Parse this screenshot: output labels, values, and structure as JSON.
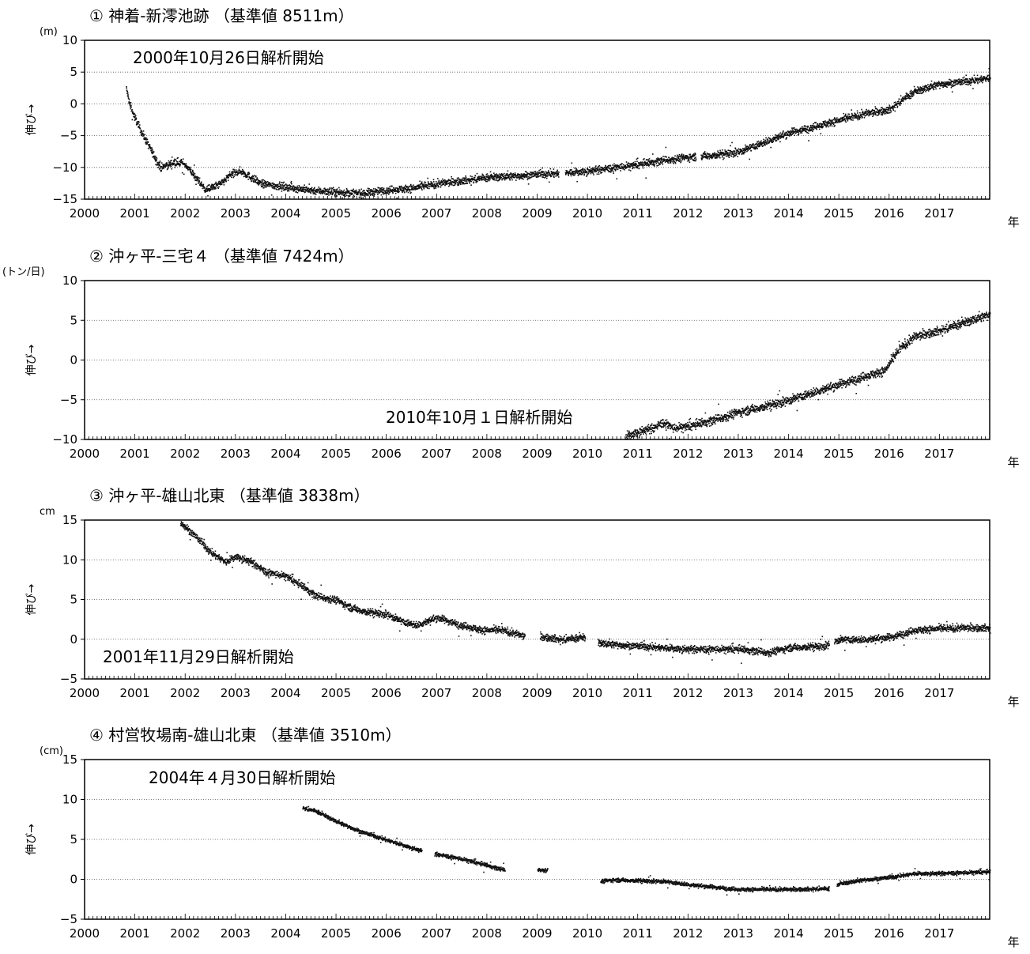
{
  "chart_data": [
    {
      "type": "scatter",
      "title": "① 神着-新澪池跡 （基準値 8511m）",
      "unit": "(m)",
      "ylabel": "伸び→",
      "annotation": "2000年10月26日解析開始",
      "xlabel": "年",
      "xlim": [
        2000.0,
        2018.0
      ],
      "ylim": [
        -15,
        10
      ],
      "yticks": [
        "10",
        "5",
        "0",
        "−5",
        "−10",
        "−15"
      ],
      "ytick_values": [
        10,
        5,
        0,
        -5,
        -10,
        -15
      ],
      "xticks": [
        "2000",
        "2001",
        "2002",
        "2003",
        "2004",
        "2005",
        "2006",
        "2007",
        "2008",
        "2009",
        "2010",
        "2011",
        "2012",
        "2013",
        "2014",
        "2015",
        "2016",
        "2017"
      ],
      "grid": true,
      "start": 2000.82,
      "gaps": [
        [
          2009.42,
          2009.55
        ],
        [
          2012.15,
          2012.25
        ]
      ],
      "noise": 0.6,
      "series": [
        {
          "x": [
            2000.82,
            2000.9,
            2001.1,
            2001.3,
            2001.5,
            2001.8,
            2002.0,
            2002.2,
            2002.4,
            2002.7,
            2002.9,
            2003.1,
            2003.5,
            2004.0,
            2004.5,
            2005.0,
            2005.5,
            2006.0,
            2006.5,
            2007.0,
            2007.5,
            2008.0,
            2008.5,
            2009.0,
            2009.5,
            2010.0,
            2010.5,
            2011.0,
            2011.5,
            2012.0,
            2012.5,
            2013.0,
            2013.5,
            2014.0,
            2014.5,
            2015.0,
            2015.5,
            2016.0,
            2016.3,
            2016.5,
            2017.0,
            2017.5,
            2018.0
          ],
          "y": [
            2.5,
            -0.5,
            -4,
            -7,
            -10,
            -9,
            -9.5,
            -11.5,
            -13.5,
            -12.5,
            -11,
            -10.5,
            -12.5,
            -13,
            -13.5,
            -13.8,
            -14,
            -13.5,
            -13.2,
            -12.5,
            -12,
            -11.5,
            -11.3,
            -11,
            -10.8,
            -10.5,
            -10,
            -9.5,
            -8.8,
            -8.3,
            -8,
            -7.5,
            -6,
            -4.5,
            -3.5,
            -2.5,
            -1.5,
            -0.8,
            1,
            2,
            3.2,
            3.6,
            4.2
          ]
        }
      ]
    },
    {
      "type": "scatter",
      "title": "② 沖ヶ平-三宅４ （基準値 7424m）",
      "unit": "(トン/日)",
      "ylabel": "伸び→",
      "annotation": "2010年10月１日解析開始",
      "xlabel": "年",
      "xlim": [
        2000.0,
        2018.0
      ],
      "ylim": [
        -10,
        10
      ],
      "yticks": [
        "10",
        "5",
        "0",
        "−5",
        "−10"
      ],
      "ytick_values": [
        10,
        5,
        0,
        -5,
        -10
      ],
      "xticks": [
        "2000",
        "2001",
        "2002",
        "2003",
        "2004",
        "2005",
        "2006",
        "2007",
        "2008",
        "2009",
        "2010",
        "2011",
        "2012",
        "2013",
        "2014",
        "2015",
        "2016",
        "2017"
      ],
      "grid": true,
      "start": 2010.75,
      "gaps": [],
      "noise": 0.55,
      "series": [
        {
          "x": [
            2010.75,
            2011.0,
            2011.3,
            2011.5,
            2011.7,
            2012.0,
            2012.5,
            2013.0,
            2013.5,
            2014.0,
            2014.5,
            2015.0,
            2015.5,
            2015.9,
            2016.2,
            2016.5,
            2017.0,
            2017.5,
            2018.0
          ],
          "y": [
            -9.5,
            -9,
            -8.5,
            -7.8,
            -8.5,
            -8.3,
            -7.5,
            -6.5,
            -5.8,
            -5,
            -4,
            -3,
            -2,
            -1.3,
            1.5,
            3,
            3.8,
            4.8,
            5.8
          ]
        }
      ]
    },
    {
      "type": "scatter",
      "title": "③ 沖ヶ平-雄山北東 （基準値 3838m）",
      "unit": "cm",
      "ylabel": "伸び→",
      "annotation": "2001年11月29日解析開始",
      "xlabel": "年",
      "xlim": [
        2000.0,
        2018.0
      ],
      "ylim": [
        -5,
        15
      ],
      "yticks": [
        "15",
        "10",
        "5",
        "0",
        "−5"
      ],
      "ytick_values": [
        15,
        10,
        5,
        0,
        -5
      ],
      "xticks": [
        "2000",
        "2001",
        "2002",
        "2003",
        "2004",
        "2005",
        "2006",
        "2007",
        "2008",
        "2009",
        "2010",
        "2011",
        "2012",
        "2013",
        "2014",
        "2015",
        "2016",
        "2017"
      ],
      "grid": true,
      "start": 2001.9,
      "gaps": [
        [
          2008.75,
          2009.05
        ],
        [
          2009.95,
          2010.2
        ],
        [
          2014.8,
          2014.9
        ]
      ],
      "noise": 0.45,
      "series": [
        {
          "x": [
            2001.9,
            2002.2,
            2002.5,
            2002.8,
            2003.0,
            2003.3,
            2003.6,
            2004.0,
            2004.3,
            2004.6,
            2005.0,
            2005.3,
            2005.6,
            2006.0,
            2006.3,
            2006.6,
            2007.0,
            2007.5,
            2007.9,
            2008.3,
            2008.7,
            2009.2,
            2009.5,
            2009.9,
            2010.3,
            2011.0,
            2012.0,
            2013.0,
            2013.6,
            2014.0,
            2014.7,
            2015.0,
            2015.5,
            2016.0,
            2016.5,
            2017.0,
            2017.5,
            2018.0
          ],
          "y": [
            14.8,
            13,
            11,
            9.8,
            10.5,
            9.8,
            8.5,
            8,
            6.8,
            5.5,
            5,
            4,
            3.5,
            3.2,
            2.3,
            1.8,
            2.8,
            1.8,
            1.2,
            1.2,
            0.5,
            0.3,
            0,
            0.3,
            -0.5,
            -0.8,
            -1.2,
            -1.2,
            -1.6,
            -1,
            -0.8,
            0,
            0,
            0.3,
            1.2,
            1.4,
            1.5,
            1.5
          ]
        }
      ]
    },
    {
      "type": "scatter",
      "title": "④ 村営牧場南-雄山北東 （基準値 3510m）",
      "unit": "(cm)",
      "ylabel": "伸び→",
      "annotation": "2004年４月30日解析開始",
      "xlabel": "年",
      "xlim": [
        2000.0,
        2018.0
      ],
      "ylim": [
        -5,
        15
      ],
      "yticks": [
        "15",
        "10",
        "5",
        "0",
        "−5"
      ],
      "ytick_values": [
        15,
        10,
        5,
        0,
        -5
      ],
      "xticks": [
        "2000",
        "2001",
        "2002",
        "2003",
        "2004",
        "2005",
        "2006",
        "2007",
        "2008",
        "2009",
        "2010",
        "2011",
        "2012",
        "2013",
        "2014",
        "2015",
        "2016",
        "2017"
      ],
      "grid": true,
      "start": 2004.33,
      "gaps": [
        [
          2006.7,
          2006.95
        ],
        [
          2008.35,
          2009.0
        ],
        [
          2009.2,
          2010.25
        ],
        [
          2014.8,
          2014.95
        ]
      ],
      "noise": 0.25,
      "series": [
        {
          "x": [
            2004.33,
            2004.6,
            2005.0,
            2005.5,
            2006.0,
            2006.5,
            2006.7,
            2007.0,
            2007.5,
            2008.0,
            2008.35,
            2009.0,
            2009.2,
            2010.25,
            2010.5,
            2011.0,
            2011.5,
            2012.0,
            2012.5,
            2013.0,
            2013.5,
            2014.0,
            2014.8,
            2015.0,
            2015.5,
            2016.0,
            2016.5,
            2017.0,
            2017.5,
            2018.0
          ],
          "y": [
            9,
            8.6,
            7.3,
            6,
            5,
            4,
            3.6,
            3.2,
            2.6,
            1.8,
            1.2,
            1.3,
            1.2,
            -0.2,
            0,
            -0.1,
            -0.2,
            -0.6,
            -0.9,
            -1.2,
            -1.2,
            -1.2,
            -1.1,
            -0.5,
            0,
            0.3,
            0.8,
            0.8,
            0.9,
            1
          ]
        }
      ]
    }
  ]
}
